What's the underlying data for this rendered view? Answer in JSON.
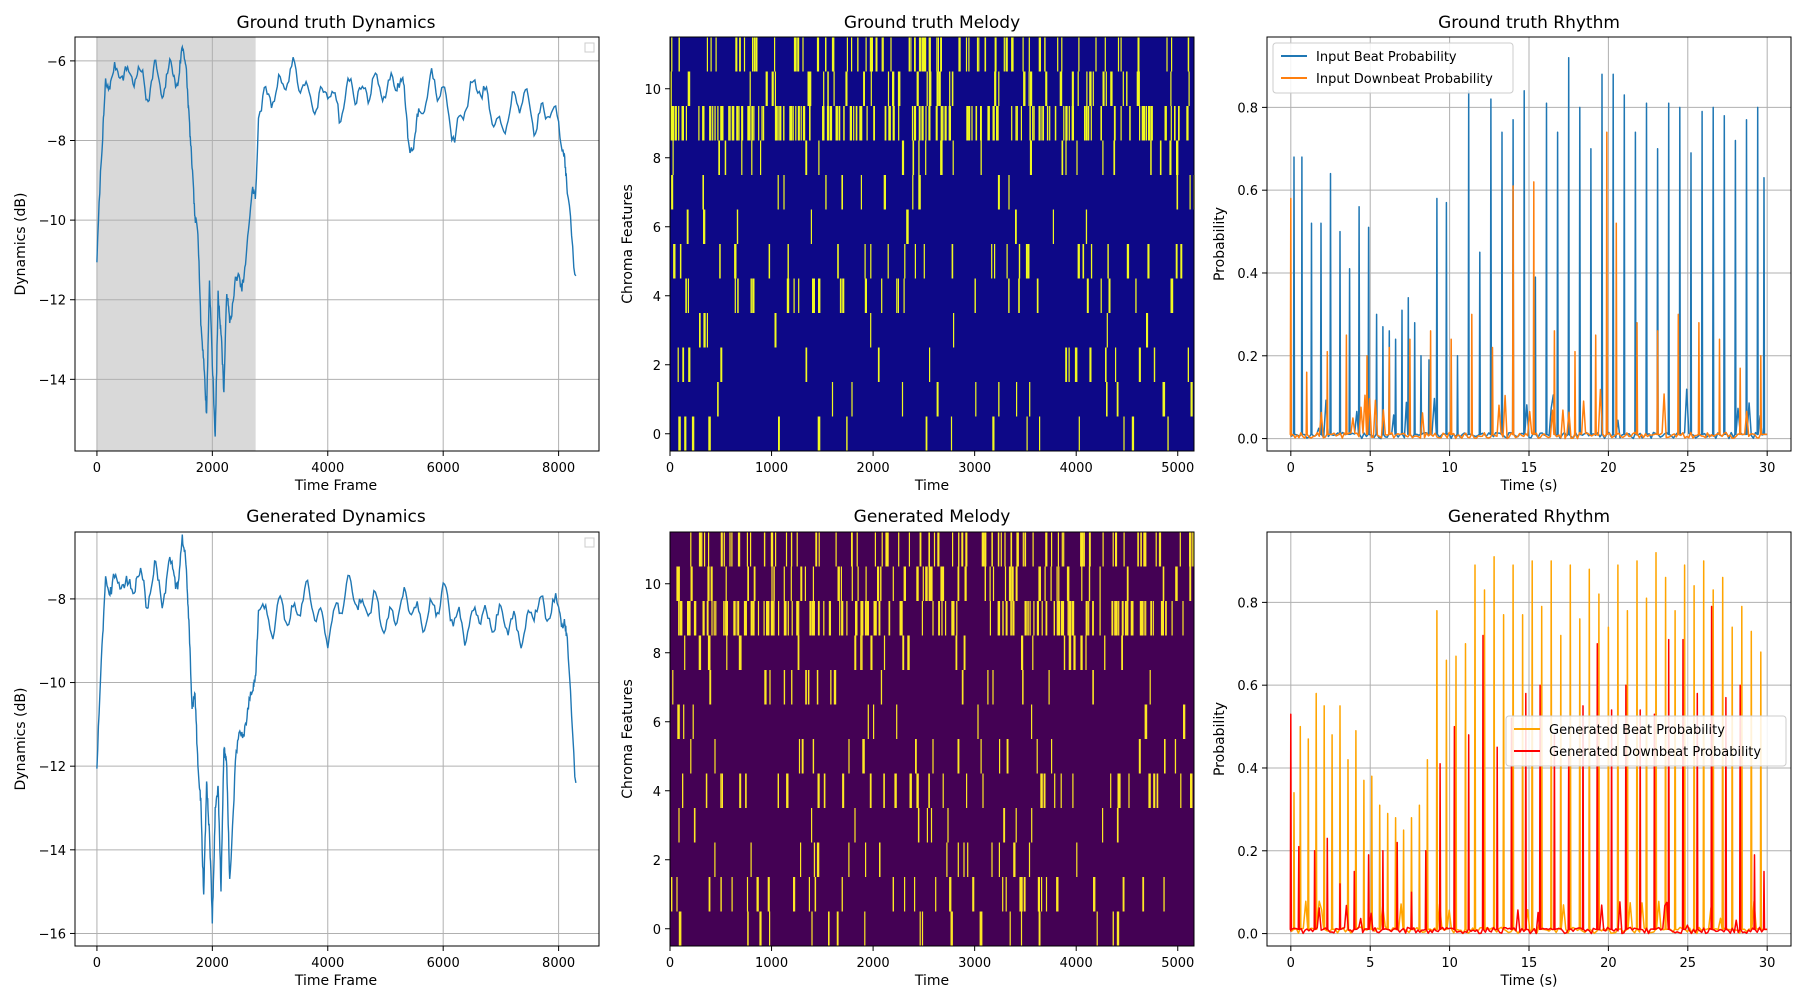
{
  "colors": {
    "dyn_line": "#1f77b4",
    "shade": "#d9d9d9",
    "gt_beat": "#1f77b4",
    "gt_downbeat": "#ff7f0e",
    "gen_beat": "#ffa500",
    "gen_downbeat": "#ff0000",
    "gt_melody_bg": "#0d0887",
    "gt_melody_on": "#f0f921",
    "gen_melody_bg": "#440154",
    "gen_melody_on": "#fde725",
    "grid": "#b0b0b0"
  },
  "chart_data": [
    {
      "id": "gt_dynamics",
      "type": "line",
      "title": "Ground truth Dynamics",
      "xlabel": "Time Frame",
      "ylabel": "Dynamics (dB)",
      "xlim": [
        -380,
        8700
      ],
      "ylim": [
        -15.8,
        -5.4
      ],
      "xticks": [
        0,
        2000,
        4000,
        6000,
        8000
      ],
      "yticks": [
        -14,
        -12,
        -10,
        -8,
        -6
      ],
      "grid": true,
      "legend": "top-right (empty)",
      "shaded_region": [
        0,
        2750
      ],
      "series": [
        {
          "name": "dynamics",
          "x": [
            0,
            100,
            150,
            250,
            400,
            550,
            700,
            850,
            1000,
            1150,
            1300,
            1400,
            1480,
            1550,
            1600,
            1650,
            1700,
            1750,
            1800,
            1850,
            1900,
            1950,
            2000,
            2050,
            2100,
            2150,
            2200,
            2250,
            2300,
            2400,
            2500,
            2600,
            2700,
            2750,
            2800,
            3000,
            3200,
            3400,
            3600,
            3800,
            4000,
            4200,
            4400,
            4600,
            4800,
            5000,
            5200,
            5300,
            5400,
            5500,
            5600,
            5800,
            6000,
            6200,
            6400,
            6600,
            6800,
            7000,
            7200,
            7400,
            7600,
            7800,
            8000,
            8100,
            8150,
            8300
          ],
          "y": [
            -11,
            -8,
            -6.3,
            -6.6,
            -6.1,
            -6.5,
            -6.2,
            -6.8,
            -6.3,
            -6.7,
            -6.2,
            -6.4,
            -5.9,
            -6.3,
            -7.2,
            -8.5,
            -10.2,
            -10.5,
            -12.5,
            -13.2,
            -14.8,
            -11.8,
            -13.8,
            -15.3,
            -11.6,
            -12.8,
            -14.6,
            -11.9,
            -12.3,
            -11.6,
            -11.8,
            -10.5,
            -9.5,
            -9.4,
            -7.1,
            -6.9,
            -6.6,
            -6.2,
            -6.7,
            -7.2,
            -6.6,
            -7.3,
            -6.6,
            -6.9,
            -6.5,
            -6.8,
            -6.4,
            -6.7,
            -7.9,
            -8.1,
            -7.3,
            -6.5,
            -6.8,
            -7.9,
            -7.0,
            -6.5,
            -7.2,
            -7.8,
            -7.1,
            -6.9,
            -7.6,
            -7.2,
            -7.5,
            -8.2,
            -9.5,
            -11.4
          ]
        }
      ]
    },
    {
      "id": "gt_melody",
      "type": "heatmap",
      "title": "Ground truth Melody",
      "xlabel": "Time",
      "ylabel": "Chroma Features",
      "xlim": [
        0,
        5160
      ],
      "ylim": [
        -0.5,
        11.5
      ],
      "xticks": [
        0,
        1000,
        2000,
        3000,
        4000,
        5000
      ],
      "yticks": [
        0,
        2,
        4,
        6,
        8,
        10
      ],
      "row_density": [
        0.07,
        0.05,
        0.06,
        0.03,
        0.12,
        0.11,
        0.03,
        0.06,
        0.1,
        0.55,
        0.2,
        0.28
      ]
    },
    {
      "id": "gt_rhythm",
      "type": "line",
      "title": "Ground truth Rhythm",
      "xlabel": "Time (s)",
      "ylabel": "Probability",
      "xlim": [
        -1.5,
        31.5
      ],
      "ylim": [
        -0.03,
        0.97
      ],
      "xticks": [
        0,
        5,
        10,
        15,
        20,
        25,
        30
      ],
      "yticks": [
        0.0,
        0.2,
        0.4,
        0.6,
        0.8
      ],
      "grid": true,
      "legend": "upper-left",
      "series": [
        {
          "name": "Input Beat Probability",
          "x": [
            0.2,
            0.7,
            1.3,
            1.9,
            2.5,
            3.1,
            3.7,
            4.3,
            4.9,
            5.4,
            5.8,
            6.2,
            6.6,
            7.0,
            7.4,
            7.8,
            8.2,
            8.7,
            9.2,
            9.8,
            10.5,
            11.2,
            11.9,
            12.6,
            13.3,
            14.0,
            14.7,
            15.4,
            16.1,
            16.8,
            17.5,
            18.2,
            18.9,
            19.6,
            20.3,
            21.0,
            21.7,
            22.4,
            23.1,
            23.8,
            24.5,
            25.2,
            25.9,
            26.6,
            27.3,
            28.0,
            28.7,
            29.4,
            29.8
          ],
          "values": [
            0.68,
            0.68,
            0.52,
            0.52,
            0.64,
            0.5,
            0.41,
            0.56,
            0.51,
            0.3,
            0.27,
            0.26,
            0.24,
            0.31,
            0.34,
            0.28,
            0.2,
            0.19,
            0.58,
            0.57,
            0.2,
            0.84,
            0.45,
            0.82,
            0.74,
            0.77,
            0.84,
            0.39,
            0.81,
            0.74,
            0.92,
            0.8,
            0.7,
            0.88,
            0.88,
            0.83,
            0.74,
            0.81,
            0.7,
            0.81,
            0.8,
            0.69,
            0.79,
            0.8,
            0.78,
            0.72,
            0.77,
            0.8,
            0.63
          ]
        },
        {
          "name": "Input Downbeat Probability",
          "x": [
            0.0,
            1.0,
            2.3,
            3.5,
            4.8,
            6.2,
            7.5,
            8.8,
            10.1,
            11.4,
            12.7,
            14.0,
            15.3,
            16.6,
            17.9,
            19.2,
            19.9,
            20.5,
            21.8,
            23.1,
            24.4,
            25.7,
            27.0,
            28.3,
            29.6
          ],
          "values": [
            0.58,
            0.16,
            0.21,
            0.25,
            0.2,
            0.22,
            0.24,
            0.26,
            0.24,
            0.3,
            0.22,
            0.61,
            0.62,
            0.26,
            0.21,
            0.25,
            0.74,
            0.52,
            0.28,
            0.26,
            0.3,
            0.28,
            0.24,
            0.17,
            0.2
          ]
        }
      ]
    },
    {
      "id": "gen_dynamics",
      "type": "line",
      "title": "Generated Dynamics",
      "xlabel": "Time Frame",
      "ylabel": "Dynamics (dB)",
      "xlim": [
        -380,
        8700
      ],
      "ylim": [
        -16.3,
        -6.4
      ],
      "xticks": [
        0,
        2000,
        4000,
        6000,
        8000
      ],
      "yticks": [
        -16,
        -14,
        -12,
        -10,
        -8
      ],
      "grid": true,
      "legend": "top-right (empty)",
      "series": [
        {
          "name": "dynamics",
          "x": [
            0,
            100,
            150,
            250,
            400,
            550,
            700,
            850,
            1000,
            1150,
            1300,
            1400,
            1480,
            1550,
            1600,
            1650,
            1700,
            1750,
            1800,
            1850,
            1900,
            1950,
            2000,
            2050,
            2100,
            2150,
            2200,
            2250,
            2300,
            2400,
            2500,
            2600,
            2700,
            2750,
            2800,
            3000,
            3200,
            3400,
            3600,
            3800,
            4000,
            4200,
            4400,
            4600,
            4800,
            5000,
            5200,
            5400,
            5600,
            5800,
            6000,
            6200,
            6400,
            6600,
            6800,
            7000,
            7200,
            7400,
            7600,
            7800,
            8000,
            8100,
            8150,
            8300
          ],
          "y": [
            -12,
            -9,
            -7.2,
            -7.9,
            -7.4,
            -7.9,
            -7.3,
            -8.0,
            -7.4,
            -7.9,
            -7.2,
            -7.5,
            -6.8,
            -7.3,
            -8.5,
            -10.4,
            -10.5,
            -12.3,
            -12.8,
            -14.8,
            -12.3,
            -13.9,
            -15.9,
            -12.9,
            -12.2,
            -14.9,
            -11.9,
            -12.1,
            -14.5,
            -12.0,
            -11.3,
            -10.6,
            -10.5,
            -9.8,
            -8.0,
            -8.7,
            -8.2,
            -8.5,
            -7.8,
            -8.3,
            -8.8,
            -8.1,
            -7.6,
            -8.4,
            -8.0,
            -8.7,
            -8.2,
            -8.0,
            -8.5,
            -8.3,
            -7.9,
            -8.4,
            -8.8,
            -8.2,
            -8.6,
            -8.4,
            -8.6,
            -8.9,
            -8.1,
            -8.3,
            -8.2,
            -8.4,
            -9.2,
            -12.4
          ]
        }
      ]
    },
    {
      "id": "gen_melody",
      "type": "heatmap",
      "title": "Generated Melody",
      "xlabel": "Time",
      "ylabel": "Chroma Features",
      "xlim": [
        0,
        5160
      ],
      "ylim": [
        -0.5,
        11.5
      ],
      "xticks": [
        0,
        1000,
        2000,
        3000,
        4000,
        5000
      ],
      "yticks": [
        0,
        2,
        4,
        6,
        8,
        10
      ],
      "row_density": [
        0.08,
        0.12,
        0.07,
        0.05,
        0.14,
        0.07,
        0.04,
        0.09,
        0.1,
        0.5,
        0.22,
        0.3
      ]
    },
    {
      "id": "gen_rhythm",
      "type": "line",
      "title": "Generated Rhythm",
      "xlabel": "Time (s)",
      "ylabel": "Probability",
      "xlim": [
        -1.5,
        31.5
      ],
      "ylim": [
        -0.03,
        0.97
      ],
      "xticks": [
        0,
        5,
        10,
        15,
        20,
        25,
        30
      ],
      "yticks": [
        0.0,
        0.2,
        0.4,
        0.6,
        0.8
      ],
      "grid": true,
      "legend": "center-right",
      "series": [
        {
          "name": "Generated Beat Probability",
          "x": [
            0.2,
            0.6,
            1.1,
            1.6,
            2.1,
            2.6,
            3.1,
            3.6,
            4.1,
            4.6,
            5.1,
            5.6,
            6.1,
            6.6,
            7.1,
            7.6,
            8.1,
            8.6,
            9.2,
            9.8,
            10.4,
            11.0,
            11.6,
            12.2,
            12.8,
            13.4,
            14.0,
            14.6,
            15.2,
            15.8,
            16.4,
            17.0,
            17.6,
            18.2,
            18.8,
            19.4,
            20.0,
            20.6,
            21.2,
            21.8,
            22.4,
            23.0,
            23.6,
            24.2,
            24.8,
            25.4,
            26.0,
            26.6,
            27.2,
            27.8,
            28.4,
            29.0,
            29.6
          ],
          "values": [
            0.34,
            0.5,
            0.47,
            0.58,
            0.55,
            0.48,
            0.55,
            0.42,
            0.49,
            0.37,
            0.38,
            0.31,
            0.29,
            0.28,
            0.25,
            0.28,
            0.31,
            0.42,
            0.78,
            0.66,
            0.67,
            0.7,
            0.89,
            0.83,
            0.91,
            0.77,
            0.89,
            0.77,
            0.9,
            0.79,
            0.9,
            0.72,
            0.89,
            0.76,
            0.88,
            0.82,
            0.74,
            0.89,
            0.78,
            0.9,
            0.81,
            0.92,
            0.86,
            0.78,
            0.89,
            0.84,
            0.9,
            0.83,
            0.86,
            0.74,
            0.79,
            0.73,
            0.68
          ]
        },
        {
          "name": "Generated Downbeat Probability",
          "x": [
            0.0,
            0.5,
            1.5,
            2.3,
            3.1,
            4.0,
            4.9,
            5.8,
            6.7,
            7.6,
            8.5,
            9.4,
            10.3,
            11.2,
            12.1,
            13.0,
            13.9,
            14.8,
            15.7,
            16.6,
            17.5,
            18.4,
            19.3,
            20.2,
            21.1,
            22.0,
            22.9,
            23.8,
            24.7,
            25.6,
            26.5,
            27.4,
            28.3,
            29.2,
            29.8
          ],
          "values": [
            0.53,
            0.21,
            0.2,
            0.23,
            0.12,
            0.15,
            0.19,
            0.2,
            0.22,
            0.1,
            0.2,
            0.41,
            0.5,
            0.48,
            0.72,
            0.45,
            0.52,
            0.58,
            0.6,
            0.48,
            0.43,
            0.55,
            0.7,
            0.54,
            0.6,
            0.54,
            0.53,
            0.71,
            0.71,
            0.58,
            0.79,
            0.57,
            0.6,
            0.19,
            0.15
          ]
        }
      ]
    }
  ]
}
